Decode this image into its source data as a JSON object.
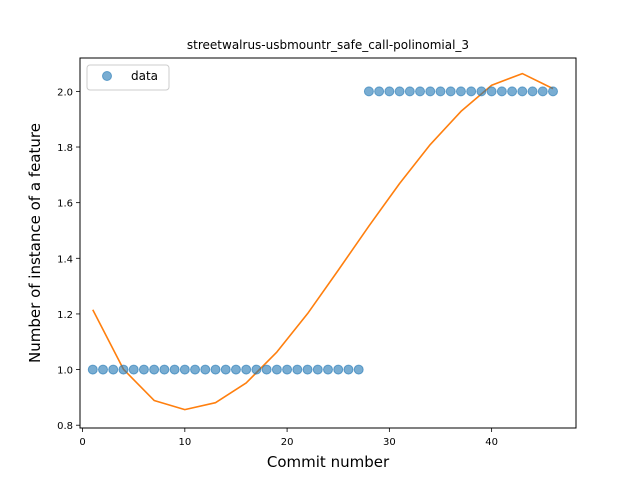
{
  "chart_data": {
    "type": "scatter",
    "title": "streetwalrus-usbmountr_safe_call-polinomial_3",
    "xlabel": "Commit number",
    "ylabel": "Number of instance of a feature",
    "xlim": [
      -0.25,
      48.25
    ],
    "ylim": [
      0.79,
      2.12
    ],
    "xticks": [
      0,
      10,
      20,
      30,
      40
    ],
    "yticks": [
      0.8,
      1.0,
      1.2,
      1.4,
      1.6,
      1.8,
      2.0
    ],
    "ytick_labels": [
      "0.8",
      "1.0",
      "1.2",
      "1.4",
      "1.6",
      "1.8",
      "2.0"
    ],
    "legend_position": "upper-left",
    "grid": false,
    "series": [
      {
        "name": "data",
        "kind": "scatter",
        "color": "#1f77b4",
        "x": [
          1,
          2,
          3,
          4,
          5,
          6,
          7,
          8,
          9,
          10,
          11,
          12,
          13,
          14,
          15,
          16,
          17,
          18,
          19,
          20,
          21,
          22,
          23,
          24,
          25,
          26,
          27,
          28,
          29,
          30,
          31,
          32,
          33,
          34,
          35,
          36,
          37,
          38,
          39,
          40,
          41,
          42,
          43,
          44,
          45,
          46
        ],
        "y": [
          1,
          1,
          1,
          1,
          1,
          1,
          1,
          1,
          1,
          1,
          1,
          1,
          1,
          1,
          1,
          1,
          1,
          1,
          1,
          1,
          1,
          1,
          1,
          1,
          1,
          1,
          1,
          2,
          2,
          2,
          2,
          2,
          2,
          2,
          2,
          2,
          2,
          2,
          2,
          2,
          2,
          2,
          2,
          2,
          2,
          2
        ]
      },
      {
        "kind": "line",
        "color": "#ff7f0e",
        "fit_degree": 3,
        "x": [
          1,
          4,
          7,
          10,
          13,
          16,
          19,
          22,
          25,
          28,
          31,
          34,
          37,
          40,
          43,
          46
        ],
        "y": [
          1.215,
          1.001,
          0.889,
          0.856,
          0.881,
          0.952,
          1.063,
          1.201,
          1.357,
          1.516,
          1.669,
          1.809,
          1.928,
          2.022,
          2.064,
          2.01
        ]
      }
    ]
  }
}
